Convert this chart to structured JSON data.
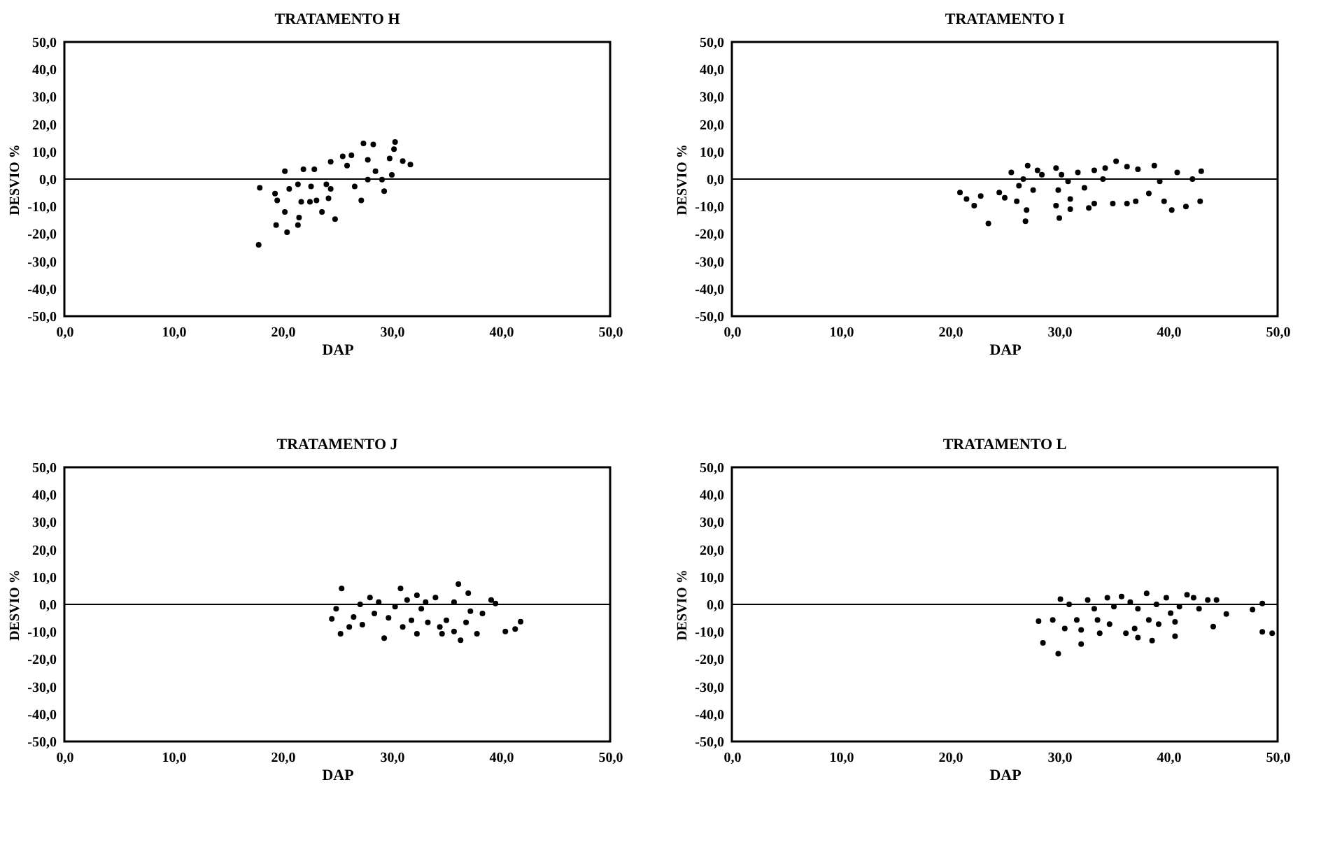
{
  "chart_data": [
    {
      "type": "scatter",
      "title": "TRATAMENTO H",
      "xlabel": "DAP",
      "ylabel": "DESVIO %",
      "marker": "circle",
      "xlim": [
        0,
        50
      ],
      "ylim": [
        -50,
        50
      ],
      "xticks": [
        {
          "value": 0,
          "label": "0,0"
        },
        {
          "value": 10,
          "label": "10,0"
        },
        {
          "value": 20,
          "label": "20,0"
        },
        {
          "value": 30,
          "label": "30,0"
        },
        {
          "value": 40,
          "label": "40,0"
        },
        {
          "value": 50,
          "label": "50,0"
        }
      ],
      "yticks": [
        {
          "value": -50,
          "label": "-50,0"
        },
        {
          "value": -40,
          "label": "-40,0"
        },
        {
          "value": -30,
          "label": "-30,0"
        },
        {
          "value": -20,
          "label": "-20,0"
        },
        {
          "value": -10,
          "label": "-10,0"
        },
        {
          "value": 0,
          "label": "0,0"
        },
        {
          "value": 10,
          "label": "10,0"
        },
        {
          "value": 20,
          "label": "20,0"
        },
        {
          "value": 30,
          "label": "30,0"
        },
        {
          "value": 40,
          "label": "40,0"
        },
        {
          "value": 50,
          "label": "50,0"
        }
      ],
      "ref_lines": [
        {
          "axis": "y",
          "value": 0
        }
      ],
      "series": [
        {
          "color": "#000000",
          "x": [
            17.8,
            17.9,
            19.3,
            19.5,
            20.2,
            19.4,
            20.4,
            21.4,
            21.5,
            20.2,
            20.6,
            21.4,
            21.7,
            21.9,
            22.5,
            22.9,
            23.1,
            23.6,
            24.2,
            24.4,
            24.8,
            24.4,
            25.5,
            25.9,
            26.3,
            26.6,
            27.2,
            27.4,
            27.8,
            28.3,
            28.5,
            29.1,
            29.3,
            29.8,
            30,
            30.2,
            30.3,
            31,
            31.7,
            27.8,
            24,
            22.6
          ],
          "values": [
            -24,
            -3.2,
            -5.3,
            -7.8,
            2.9,
            -16.8,
            -19.4,
            -16.8,
            -14,
            -12,
            -3.6,
            -1.9,
            -8.3,
            3.6,
            -8.3,
            3.6,
            -7.8,
            -12,
            -7,
            6.3,
            -14.6,
            -3.6,
            8.3,
            4.9,
            8.7,
            -2.7,
            -7.8,
            13,
            7,
            12.6,
            2.9,
            -0.2,
            -4.4,
            7.5,
            1.5,
            10.9,
            13.5,
            6.6,
            5.3,
            -0.2,
            -1.9,
            -2.7
          ]
        }
      ]
    },
    {
      "type": "scatter",
      "title": "TRATAMENTO I",
      "xlabel": "DAP",
      "ylabel": "DESVIO %",
      "marker": "circle",
      "xlim": [
        0,
        50
      ],
      "ylim": [
        -50,
        50
      ],
      "xticks": [
        {
          "value": 0,
          "label": "0,0"
        },
        {
          "value": 10,
          "label": "10,0"
        },
        {
          "value": 20,
          "label": "20,0"
        },
        {
          "value": 30,
          "label": "30,0"
        },
        {
          "value": 40,
          "label": "40,0"
        },
        {
          "value": 50,
          "label": "50,0"
        }
      ],
      "yticks": [
        {
          "value": -50,
          "label": "-50,0"
        },
        {
          "value": -40,
          "label": "-40,0"
        },
        {
          "value": -30,
          "label": "-30,0"
        },
        {
          "value": -20,
          "label": "-20,0"
        },
        {
          "value": -10,
          "label": "-10,0"
        },
        {
          "value": 0,
          "label": "0,0"
        },
        {
          "value": 10,
          "label": "10,0"
        },
        {
          "value": 20,
          "label": "20,0"
        },
        {
          "value": 30,
          "label": "30,0"
        },
        {
          "value": 40,
          "label": "40,0"
        },
        {
          "value": 50,
          "label": "50,0"
        }
      ],
      "ref_lines": [
        {
          "axis": "y",
          "value": 0
        }
      ],
      "series": [
        {
          "color": "#000000",
          "x": [
            20.9,
            21.5,
            22.2,
            22.8,
            23.5,
            24.5,
            25,
            25.6,
            26.1,
            26.3,
            26.7,
            27,
            26.9,
            27.1,
            27.6,
            28,
            28.4,
            29.7,
            29.7,
            29.9,
            30,
            30.2,
            30.8,
            31,
            31,
            31.7,
            32.3,
            32.7,
            33.2,
            33.2,
            34,
            34.2,
            34.9,
            35.2,
            36.2,
            36.2,
            37,
            37.2,
            38.2,
            38.7,
            39.2,
            39.6,
            40.3,
            40.8,
            41.6,
            42.2,
            42.9,
            43
          ],
          "values": [
            -4.9,
            -7.3,
            -9.7,
            -6.2,
            -16.2,
            -4.9,
            -6.8,
            2.4,
            -8.1,
            -2.4,
            0,
            -11.3,
            -15.4,
            4.9,
            -4,
            3.2,
            1.6,
            4,
            -9.7,
            -4,
            -14.2,
            1.6,
            -0.8,
            -7.3,
            -11,
            2.4,
            -3.2,
            -10.5,
            -8.9,
            3.2,
            0,
            4,
            -8.9,
            6.5,
            -8.9,
            4.5,
            -8.1,
            3.6,
            -5.2,
            4.9,
            -0.8,
            -8.1,
            -11.3,
            2.4,
            -10,
            0,
            -8.1,
            2.9
          ]
        }
      ]
    },
    {
      "type": "scatter",
      "title": "TRATAMENTO J",
      "xlabel": "DAP",
      "ylabel": "DESVIO %",
      "marker": "circle",
      "xlim": [
        0,
        50
      ],
      "ylim": [
        -50,
        50
      ],
      "xticks": [
        {
          "value": 0,
          "label": "0,0"
        },
        {
          "value": 10,
          "label": "10,0"
        },
        {
          "value": 20,
          "label": "20,0"
        },
        {
          "value": 30,
          "label": "30,0"
        },
        {
          "value": 40,
          "label": "40,0"
        },
        {
          "value": 50,
          "label": "50,0"
        }
      ],
      "yticks": [
        {
          "value": -50,
          "label": "-50,0"
        },
        {
          "value": -40,
          "label": "-40,0"
        },
        {
          "value": -30,
          "label": "-30,0"
        },
        {
          "value": -20,
          "label": "-20,0"
        },
        {
          "value": -10,
          "label": "-10,0"
        },
        {
          "value": 0,
          "label": "0,0"
        },
        {
          "value": 10,
          "label": "10,0"
        },
        {
          "value": 20,
          "label": "20,0"
        },
        {
          "value": 30,
          "label": "30,0"
        },
        {
          "value": 40,
          "label": "40,0"
        },
        {
          "value": 50,
          "label": "50,0"
        }
      ],
      "ref_lines": [
        {
          "axis": "y",
          "value": 0
        }
      ],
      "series": [
        {
          "color": "#000000",
          "x": [
            25.4,
            24.9,
            24.5,
            25.3,
            26.1,
            26.5,
            27.1,
            27.3,
            28,
            28.4,
            28.8,
            29.3,
            29.7,
            30.3,
            30.8,
            31,
            31.4,
            31.8,
            32.3,
            32.3,
            32.7,
            33.1,
            33.3,
            34,
            34.4,
            34.6,
            35,
            35.7,
            35.7,
            36.1,
            36.3,
            36.8,
            37,
            37.2,
            37.8,
            38.3,
            39.1,
            39.5,
            40.4,
            41.3,
            41.8
          ],
          "values": [
            5.8,
            -1.6,
            -5.3,
            -10.7,
            -8.2,
            -4.6,
            0,
            -7.4,
            2.5,
            -3.3,
            0.8,
            -12.3,
            -4.9,
            -0.8,
            5.8,
            -8.2,
            1.6,
            -5.8,
            3.3,
            -10.7,
            -1.6,
            0.8,
            -6.6,
            2.5,
            -8.2,
            -10.7,
            -5.8,
            0.8,
            -9.9,
            7.4,
            -13.1,
            -6.6,
            4.1,
            -2.5,
            -10.7,
            -3.3,
            1.6,
            0.3,
            -9.9,
            -9,
            -6.3
          ]
        }
      ]
    },
    {
      "type": "scatter",
      "title": "TRATAMENTO L",
      "xlabel": "DAP",
      "ylabel": "DESVIO %",
      "marker": "circle",
      "xlim": [
        0,
        50
      ],
      "ylim": [
        -50,
        50
      ],
      "xticks": [
        {
          "value": 0,
          "label": "0,0"
        },
        {
          "value": 10,
          "label": "10,0"
        },
        {
          "value": 20,
          "label": "20,0"
        },
        {
          "value": 30,
          "label": "30,0"
        },
        {
          "value": 40,
          "label": "40,0"
        },
        {
          "value": 50,
          "label": "50,0"
        }
      ],
      "yticks": [
        {
          "value": -50,
          "label": "-50,0"
        },
        {
          "value": -40,
          "label": "-40,0"
        },
        {
          "value": -30,
          "label": "-30,0"
        },
        {
          "value": -20,
          "label": "-20,0"
        },
        {
          "value": -10,
          "label": "-10,0"
        },
        {
          "value": 0,
          "label": "0,0"
        },
        {
          "value": 10,
          "label": "10,0"
        },
        {
          "value": 20,
          "label": "20,0"
        },
        {
          "value": 30,
          "label": "30,0"
        },
        {
          "value": 40,
          "label": "40,0"
        },
        {
          "value": 50,
          "label": "50,0"
        }
      ],
      "ref_lines": [
        {
          "axis": "y",
          "value": 0
        }
      ],
      "series": [
        {
          "color": "#000000",
          "x": [
            28.1,
            28.5,
            29.9,
            30.1,
            29.4,
            30.5,
            30.9,
            31.6,
            32,
            32,
            32.6,
            33.2,
            33.5,
            33.7,
            34.4,
            34.6,
            35,
            35.7,
            36.1,
            36.5,
            36.9,
            37.2,
            37.2,
            38,
            38.2,
            38.5,
            38.9,
            39.1,
            39.8,
            40.2,
            40.6,
            40.6,
            41,
            41.7,
            42.3,
            42.8,
            43.6,
            44.1,
            44.4,
            45.3,
            47.7,
            48.6,
            48.6,
            49.5
          ],
          "values": [
            -6.1,
            -14,
            -18,
            1.9,
            -5.7,
            -8.8,
            0,
            -5.7,
            -9.3,
            -14.5,
            1.6,
            -1.6,
            -5.7,
            -10.5,
            2.4,
            -7.2,
            -0.8,
            2.9,
            -10.5,
            0.8,
            -8.8,
            -1.6,
            -12.1,
            4,
            -5.7,
            -13.2,
            0,
            -7.2,
            2.4,
            -3.2,
            -11.6,
            -6.4,
            -0.8,
            3.5,
            2.4,
            -1.6,
            1.6,
            -8.1,
            1.6,
            -3.5,
            -1.9,
            0.3,
            -10,
            -10.5
          ]
        }
      ]
    }
  ]
}
